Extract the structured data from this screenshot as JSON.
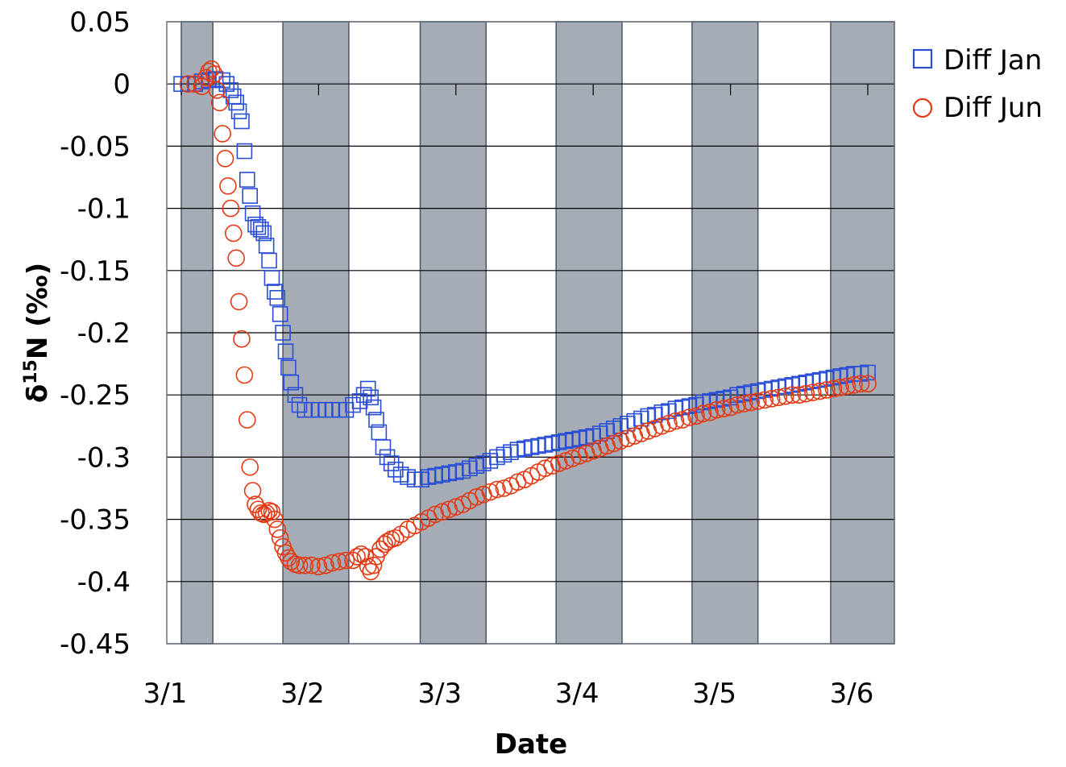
{
  "chart_data": {
    "type": "scatter",
    "title": "",
    "xlabel": "Date",
    "ylabel_main": "δ",
    "ylabel_sup": "15",
    "ylabel_rest": "N (‰)",
    "ylim": [
      -0.45,
      0.05
    ],
    "yticks": [
      0.05,
      0,
      -0.05,
      -0.1,
      -0.15,
      -0.2,
      -0.25,
      -0.3,
      -0.35,
      -0.4,
      -0.45
    ],
    "yticklabels": [
      "0.05",
      "0",
      "-0.05",
      "-0.1",
      "-0.15",
      "-0.2",
      "-0.25",
      "-0.3",
      "-0.35",
      "-0.4",
      "-0.45"
    ],
    "xlim": [
      0,
      5.2
    ],
    "xticks": [
      0,
      1,
      2,
      3,
      4,
      5
    ],
    "xticklabels": [
      "3/1",
      "3/2",
      "3/3",
      "3/4",
      "3/5",
      "3/6"
    ],
    "grid": "horizontal",
    "legend_position": "top-right",
    "night_bands": [
      [
        0,
        0.23
      ],
      [
        0.74,
        1.22
      ],
      [
        1.74,
        2.22
      ],
      [
        2.73,
        3.21
      ],
      [
        3.72,
        4.2
      ],
      [
        4.73,
        5.2
      ]
    ],
    "colors": {
      "band": "#a5acb6",
      "band_edge": "#4a5568",
      "grid": "#000000",
      "jan": "#2a4fd6",
      "jun": "#e23a14"
    },
    "series": [
      {
        "name": "Diff Jan",
        "marker": "square",
        "points": [
          [
            0.0,
            0.0
          ],
          [
            0.05,
            0.0
          ],
          [
            0.1,
            0.0
          ],
          [
            0.15,
            0.002
          ],
          [
            0.2,
            0.003
          ],
          [
            0.25,
            0.004
          ],
          [
            0.3,
            0.003
          ],
          [
            0.33,
            0.0
          ],
          [
            0.36,
            -0.005
          ],
          [
            0.38,
            -0.01
          ],
          [
            0.4,
            -0.015
          ],
          [
            0.42,
            -0.022
          ],
          [
            0.44,
            -0.03
          ],
          [
            0.46,
            -0.054
          ],
          [
            0.48,
            -0.077
          ],
          [
            0.5,
            -0.09
          ],
          [
            0.52,
            -0.104
          ],
          [
            0.54,
            -0.113
          ],
          [
            0.56,
            -0.115
          ],
          [
            0.58,
            -0.117
          ],
          [
            0.6,
            -0.12
          ],
          [
            0.62,
            -0.13
          ],
          [
            0.64,
            -0.142
          ],
          [
            0.66,
            -0.156
          ],
          [
            0.68,
            -0.167
          ],
          [
            0.7,
            -0.172
          ],
          [
            0.72,
            -0.185
          ],
          [
            0.74,
            -0.2
          ],
          [
            0.76,
            -0.215
          ],
          [
            0.78,
            -0.228
          ],
          [
            0.8,
            -0.24
          ],
          [
            0.83,
            -0.25
          ],
          [
            0.86,
            -0.258
          ],
          [
            0.9,
            -0.262
          ],
          [
            0.95,
            -0.262
          ],
          [
            1.0,
            -0.262
          ],
          [
            1.05,
            -0.262
          ],
          [
            1.1,
            -0.262
          ],
          [
            1.15,
            -0.262
          ],
          [
            1.2,
            -0.262
          ],
          [
            1.25,
            -0.258
          ],
          [
            1.3,
            -0.255
          ],
          [
            1.33,
            -0.25
          ],
          [
            1.36,
            -0.245
          ],
          [
            1.38,
            -0.252
          ],
          [
            1.4,
            -0.26
          ],
          [
            1.42,
            -0.27
          ],
          [
            1.44,
            -0.28
          ],
          [
            1.47,
            -0.292
          ],
          [
            1.5,
            -0.3
          ],
          [
            1.53,
            -0.305
          ],
          [
            1.56,
            -0.31
          ],
          [
            1.6,
            -0.314
          ],
          [
            1.65,
            -0.316
          ],
          [
            1.7,
            -0.318
          ],
          [
            1.75,
            -0.318
          ],
          [
            1.8,
            -0.316
          ],
          [
            1.85,
            -0.315
          ],
          [
            1.9,
            -0.314
          ],
          [
            1.95,
            -0.313
          ],
          [
            2.0,
            -0.312
          ],
          [
            2.05,
            -0.311
          ],
          [
            2.1,
            -0.309
          ],
          [
            2.15,
            -0.307
          ],
          [
            2.2,
            -0.305
          ],
          [
            2.25,
            -0.303
          ],
          [
            2.3,
            -0.3
          ],
          [
            2.35,
            -0.298
          ],
          [
            2.4,
            -0.296
          ],
          [
            2.45,
            -0.294
          ],
          [
            2.5,
            -0.293
          ],
          [
            2.55,
            -0.292
          ],
          [
            2.6,
            -0.291
          ],
          [
            2.65,
            -0.29
          ],
          [
            2.7,
            -0.289
          ],
          [
            2.75,
            -0.288
          ],
          [
            2.8,
            -0.287
          ],
          [
            2.85,
            -0.286
          ],
          [
            2.9,
            -0.285
          ],
          [
            2.95,
            -0.284
          ],
          [
            3.0,
            -0.283
          ],
          [
            3.05,
            -0.281
          ],
          [
            3.1,
            -0.279
          ],
          [
            3.15,
            -0.277
          ],
          [
            3.2,
            -0.275
          ],
          [
            3.25,
            -0.273
          ],
          [
            3.3,
            -0.271
          ],
          [
            3.35,
            -0.269
          ],
          [
            3.4,
            -0.267
          ],
          [
            3.45,
            -0.266
          ],
          [
            3.5,
            -0.264
          ],
          [
            3.55,
            -0.263
          ],
          [
            3.6,
            -0.261
          ],
          [
            3.65,
            -0.26
          ],
          [
            3.7,
            -0.259
          ],
          [
            3.75,
            -0.258
          ],
          [
            3.8,
            -0.256
          ],
          [
            3.85,
            -0.255
          ],
          [
            3.9,
            -0.254
          ],
          [
            3.95,
            -0.253
          ],
          [
            4.0,
            -0.252
          ],
          [
            4.05,
            -0.25
          ],
          [
            4.1,
            -0.249
          ],
          [
            4.15,
            -0.248
          ],
          [
            4.2,
            -0.247
          ],
          [
            4.25,
            -0.246
          ],
          [
            4.3,
            -0.245
          ],
          [
            4.35,
            -0.244
          ],
          [
            4.4,
            -0.243
          ],
          [
            4.45,
            -0.242
          ],
          [
            4.5,
            -0.241
          ],
          [
            4.55,
            -0.24
          ],
          [
            4.6,
            -0.239
          ],
          [
            4.65,
            -0.238
          ],
          [
            4.7,
            -0.237
          ],
          [
            4.75,
            -0.236
          ],
          [
            4.8,
            -0.235
          ],
          [
            4.85,
            -0.234
          ],
          [
            4.9,
            -0.233
          ],
          [
            4.95,
            -0.233
          ],
          [
            5.0,
            -0.232
          ]
        ]
      },
      {
        "name": "Diff Jun",
        "marker": "circle",
        "points": [
          [
            0.05,
            0.0
          ],
          [
            0.1,
            0.0
          ],
          [
            0.15,
            -0.002
          ],
          [
            0.18,
            0.005
          ],
          [
            0.2,
            0.01
          ],
          [
            0.22,
            0.012
          ],
          [
            0.24,
            0.008
          ],
          [
            0.26,
            -0.005
          ],
          [
            0.28,
            -0.015
          ],
          [
            0.3,
            -0.04
          ],
          [
            0.32,
            -0.06
          ],
          [
            0.34,
            -0.082
          ],
          [
            0.36,
            -0.1
          ],
          [
            0.38,
            -0.12
          ],
          [
            0.4,
            -0.14
          ],
          [
            0.42,
            -0.175
          ],
          [
            0.44,
            -0.205
          ],
          [
            0.46,
            -0.234
          ],
          [
            0.48,
            -0.27
          ],
          [
            0.5,
            -0.308
          ],
          [
            0.52,
            -0.327
          ],
          [
            0.54,
            -0.338
          ],
          [
            0.56,
            -0.342
          ],
          [
            0.58,
            -0.345
          ],
          [
            0.6,
            -0.346
          ],
          [
            0.62,
            -0.345
          ],
          [
            0.64,
            -0.343
          ],
          [
            0.66,
            -0.344
          ],
          [
            0.68,
            -0.35
          ],
          [
            0.7,
            -0.358
          ],
          [
            0.72,
            -0.365
          ],
          [
            0.74,
            -0.372
          ],
          [
            0.76,
            -0.377
          ],
          [
            0.78,
            -0.381
          ],
          [
            0.8,
            -0.384
          ],
          [
            0.83,
            -0.386
          ],
          [
            0.86,
            -0.387
          ],
          [
            0.9,
            -0.387
          ],
          [
            0.95,
            -0.387
          ],
          [
            1.0,
            -0.388
          ],
          [
            1.05,
            -0.387
          ],
          [
            1.1,
            -0.385
          ],
          [
            1.15,
            -0.384
          ],
          [
            1.2,
            -0.383
          ],
          [
            1.25,
            -0.383
          ],
          [
            1.28,
            -0.38
          ],
          [
            1.31,
            -0.378
          ],
          [
            1.34,
            -0.38
          ],
          [
            1.36,
            -0.388
          ],
          [
            1.38,
            -0.392
          ],
          [
            1.4,
            -0.387
          ],
          [
            1.42,
            -0.38
          ],
          [
            1.45,
            -0.374
          ],
          [
            1.48,
            -0.37
          ],
          [
            1.5,
            -0.368
          ],
          [
            1.53,
            -0.366
          ],
          [
            1.56,
            -0.365
          ],
          [
            1.6,
            -0.362
          ],
          [
            1.65,
            -0.358
          ],
          [
            1.7,
            -0.355
          ],
          [
            1.75,
            -0.352
          ],
          [
            1.8,
            -0.349
          ],
          [
            1.85,
            -0.346
          ],
          [
            1.9,
            -0.344
          ],
          [
            1.95,
            -0.342
          ],
          [
            2.0,
            -0.34
          ],
          [
            2.05,
            -0.338
          ],
          [
            2.1,
            -0.335
          ],
          [
            2.15,
            -0.332
          ],
          [
            2.2,
            -0.33
          ],
          [
            2.25,
            -0.328
          ],
          [
            2.3,
            -0.326
          ],
          [
            2.35,
            -0.325
          ],
          [
            2.4,
            -0.323
          ],
          [
            2.45,
            -0.32
          ],
          [
            2.5,
            -0.318
          ],
          [
            2.55,
            -0.315
          ],
          [
            2.6,
            -0.312
          ],
          [
            2.65,
            -0.309
          ],
          [
            2.7,
            -0.307
          ],
          [
            2.75,
            -0.305
          ],
          [
            2.8,
            -0.303
          ],
          [
            2.85,
            -0.301
          ],
          [
            2.9,
            -0.299
          ],
          [
            2.95,
            -0.297
          ],
          [
            3.0,
            -0.295
          ],
          [
            3.05,
            -0.293
          ],
          [
            3.1,
            -0.291
          ],
          [
            3.15,
            -0.289
          ],
          [
            3.2,
            -0.287
          ],
          [
            3.25,
            -0.285
          ],
          [
            3.3,
            -0.283
          ],
          [
            3.35,
            -0.281
          ],
          [
            3.4,
            -0.279
          ],
          [
            3.45,
            -0.277
          ],
          [
            3.5,
            -0.275
          ],
          [
            3.55,
            -0.273
          ],
          [
            3.6,
            -0.271
          ],
          [
            3.65,
            -0.27
          ],
          [
            3.7,
            -0.268
          ],
          [
            3.75,
            -0.267
          ],
          [
            3.8,
            -0.265
          ],
          [
            3.85,
            -0.264
          ],
          [
            3.9,
            -0.262
          ],
          [
            3.95,
            -0.261
          ],
          [
            4.0,
            -0.26
          ],
          [
            4.05,
            -0.258
          ],
          [
            4.1,
            -0.257
          ],
          [
            4.15,
            -0.256
          ],
          [
            4.2,
            -0.255
          ],
          [
            4.25,
            -0.254
          ],
          [
            4.3,
            -0.253
          ],
          [
            4.35,
            -0.252
          ],
          [
            4.4,
            -0.251
          ],
          [
            4.45,
            -0.25
          ],
          [
            4.5,
            -0.25
          ],
          [
            4.55,
            -0.249
          ],
          [
            4.6,
            -0.248
          ],
          [
            4.65,
            -0.247
          ],
          [
            4.7,
            -0.246
          ],
          [
            4.75,
            -0.245
          ],
          [
            4.8,
            -0.244
          ],
          [
            4.85,
            -0.243
          ],
          [
            4.9,
            -0.242
          ],
          [
            4.95,
            -0.241
          ],
          [
            5.0,
            -0.241
          ]
        ]
      }
    ]
  }
}
